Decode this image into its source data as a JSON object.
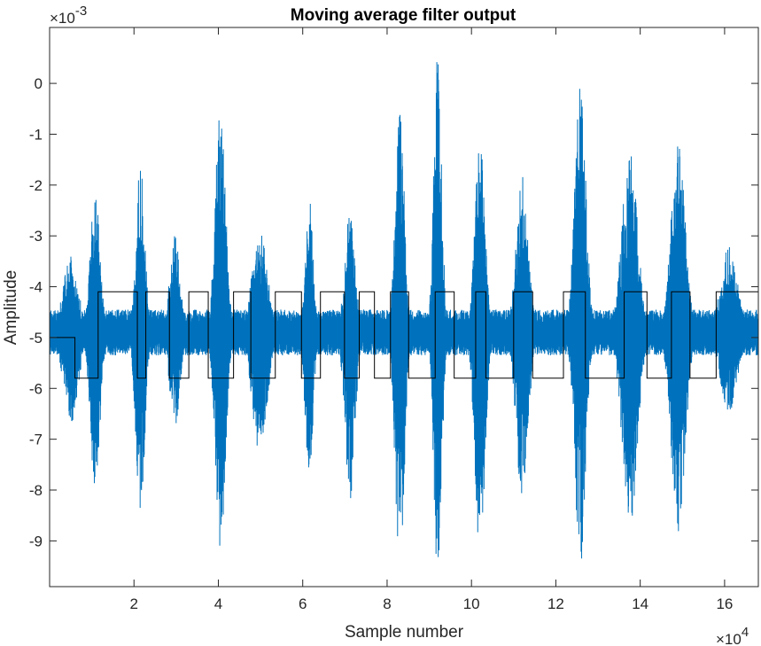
{
  "chart_data": {
    "type": "line",
    "title": "Moving average filter output",
    "xlabel": "Sample number",
    "ylabel": "Amplitude",
    "xlim": [
      0,
      168000
    ],
    "ylim": [
      -0.0099,
      0.0011
    ],
    "x_ticks": [
      20000,
      40000,
      60000,
      80000,
      100000,
      120000,
      140000,
      160000
    ],
    "x_tick_labels": [
      "2",
      "4",
      "6",
      "8",
      "10",
      "12",
      "14",
      "16"
    ],
    "x_exponent": {
      "base": "×10",
      "power": "4"
    },
    "y_ticks": [
      -0.009,
      -0.008,
      -0.007,
      -0.006,
      -0.005,
      -0.004,
      -0.003,
      -0.002,
      -0.001,
      0
    ],
    "y_tick_labels": [
      "-9",
      "-8",
      "-7",
      "-6",
      "-5",
      "-4",
      "-3",
      "-2",
      "-1",
      "0"
    ],
    "y_exponent": {
      "base": "×10",
      "power": "-3"
    },
    "grid": false,
    "series": [
      {
        "color": "#0072BD",
        "baseline": -0.0049,
        "bursts": [
          {
            "center": 5000,
            "width": 2500,
            "max": -0.0034,
            "min": -0.0067
          },
          {
            "center": 10800,
            "width": 1600,
            "max": -0.0021,
            "min": -0.008
          },
          {
            "center": 21500,
            "width": 1500,
            "max": -0.0016,
            "min": -0.0085
          },
          {
            "center": 29700,
            "width": 1700,
            "max": -0.003,
            "min": -0.0068
          },
          {
            "center": 40500,
            "width": 1700,
            "max": -0.0004,
            "min": -0.0092
          },
          {
            "center": 49800,
            "width": 2500,
            "max": -0.0028,
            "min": -0.0073
          },
          {
            "center": 61500,
            "width": 1300,
            "max": -0.0022,
            "min": -0.0078
          },
          {
            "center": 71200,
            "width": 1700,
            "max": -0.0025,
            "min": -0.0082
          },
          {
            "center": 83000,
            "width": 1500,
            "max": -0.0004,
            "min": -0.0097
          },
          {
            "center": 92000,
            "width": 1300,
            "max": 0.0006,
            "min": -0.0099
          },
          {
            "center": 102000,
            "width": 1700,
            "max": -0.001,
            "min": -0.0093
          },
          {
            "center": 112000,
            "width": 2000,
            "max": -0.0017,
            "min": -0.0082
          },
          {
            "center": 125800,
            "width": 1800,
            "max": 0.0002,
            "min": -0.0096
          },
          {
            "center": 137500,
            "width": 2500,
            "max": -0.0012,
            "min": -0.0088
          },
          {
            "center": 149000,
            "width": 2300,
            "max": -0.0011,
            "min": -0.0089
          },
          {
            "center": 161000,
            "width": 2800,
            "max": -0.0032,
            "min": -0.0065
          }
        ],
        "noise_amplitude": 0.00045,
        "n_samples": 2600
      },
      {
        "color": "#000000",
        "x": [
          0,
          6000,
          6000,
          11500,
          11500,
          20800,
          20800,
          22800,
          22800,
          28400,
          28400,
          33000,
          33000,
          37600,
          37600,
          43600,
          43600,
          47700,
          47700,
          53500,
          53500,
          59700,
          59700,
          64200,
          64200,
          69900,
          69900,
          73400,
          73400,
          77000,
          77000,
          80800,
          80800,
          85100,
          85100,
          91400,
          91400,
          95900,
          95900,
          101000,
          101000,
          103400,
          103400,
          110000,
          110000,
          114500,
          114500,
          121800,
          121800,
          127000,
          127000,
          136200,
          136200,
          141600,
          141600,
          147400,
          147400,
          151800,
          151800,
          158000,
          158000,
          168000
        ],
        "y": [
          -0.005,
          -0.005,
          -0.0058,
          -0.0058,
          -0.0041,
          -0.0041,
          -0.0058,
          -0.0058,
          -0.0041,
          -0.0041,
          -0.0058,
          -0.0058,
          -0.0041,
          -0.0041,
          -0.0058,
          -0.0058,
          -0.0041,
          -0.0041,
          -0.0058,
          -0.0058,
          -0.0041,
          -0.0041,
          -0.0058,
          -0.0058,
          -0.0041,
          -0.0041,
          -0.0058,
          -0.0058,
          -0.0041,
          -0.0041,
          -0.0058,
          -0.0058,
          -0.0041,
          -0.0041,
          -0.0058,
          -0.0058,
          -0.0041,
          -0.0041,
          -0.0058,
          -0.0058,
          -0.0041,
          -0.0041,
          -0.0058,
          -0.0058,
          -0.0041,
          -0.0041,
          -0.0058,
          -0.0058,
          -0.0041,
          -0.0041,
          -0.0058,
          -0.0058,
          -0.0041,
          -0.0041,
          -0.0058,
          -0.0058,
          -0.0041,
          -0.0041,
          -0.0058,
          -0.0058,
          -0.0041,
          -0.0041
        ]
      }
    ]
  }
}
